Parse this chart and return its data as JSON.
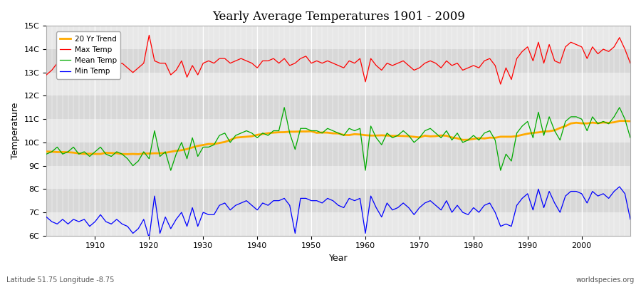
{
  "title": "Yearly Average Temperatures 1901 - 2009",
  "xlabel": "Year",
  "ylabel": "Temperature",
  "subtitle_left": "Latitude 51.75 Longitude -8.75",
  "subtitle_right": "worldspecies.org",
  "years": [
    1901,
    1902,
    1903,
    1904,
    1905,
    1906,
    1907,
    1908,
    1909,
    1910,
    1911,
    1912,
    1913,
    1914,
    1915,
    1916,
    1917,
    1918,
    1919,
    1920,
    1921,
    1922,
    1923,
    1924,
    1925,
    1926,
    1927,
    1928,
    1929,
    1930,
    1931,
    1932,
    1933,
    1934,
    1935,
    1936,
    1937,
    1938,
    1939,
    1940,
    1941,
    1942,
    1943,
    1944,
    1945,
    1946,
    1947,
    1948,
    1949,
    1950,
    1951,
    1952,
    1953,
    1954,
    1955,
    1956,
    1957,
    1958,
    1959,
    1960,
    1961,
    1962,
    1963,
    1964,
    1965,
    1966,
    1967,
    1968,
    1969,
    1970,
    1971,
    1972,
    1973,
    1974,
    1975,
    1976,
    1977,
    1978,
    1979,
    1980,
    1981,
    1982,
    1983,
    1984,
    1985,
    1986,
    1987,
    1988,
    1989,
    1990,
    1991,
    1992,
    1993,
    1994,
    1995,
    1996,
    1997,
    1998,
    1999,
    2000,
    2001,
    2002,
    2003,
    2004,
    2005,
    2006,
    2007,
    2008,
    2009
  ],
  "max_temp": [
    12.9,
    13.1,
    13.4,
    13.2,
    13.3,
    13.5,
    13.2,
    13.4,
    13.2,
    13.4,
    13.6,
    13.3,
    13.1,
    13.3,
    13.4,
    13.2,
    13.0,
    13.2,
    13.4,
    14.6,
    13.5,
    13.4,
    13.4,
    12.9,
    13.1,
    13.5,
    12.8,
    13.3,
    12.9,
    13.4,
    13.5,
    13.4,
    13.6,
    13.6,
    13.4,
    13.5,
    13.6,
    13.5,
    13.4,
    13.2,
    13.5,
    13.5,
    13.6,
    13.4,
    13.6,
    13.3,
    13.4,
    13.6,
    13.7,
    13.4,
    13.5,
    13.4,
    13.5,
    13.4,
    13.3,
    13.2,
    13.5,
    13.4,
    13.6,
    12.6,
    13.6,
    13.3,
    13.1,
    13.4,
    13.3,
    13.4,
    13.5,
    13.3,
    13.1,
    13.2,
    13.4,
    13.5,
    13.4,
    13.2,
    13.5,
    13.3,
    13.4,
    13.1,
    13.2,
    13.3,
    13.2,
    13.5,
    13.6,
    13.3,
    12.5,
    13.2,
    12.7,
    13.6,
    13.9,
    14.1,
    13.5,
    14.3,
    13.4,
    14.2,
    13.5,
    13.4,
    14.1,
    14.3,
    14.2,
    14.1,
    13.6,
    14.1,
    13.8,
    14.0,
    13.9,
    14.1,
    14.5,
    14.0,
    13.4
  ],
  "mean_temp": [
    9.5,
    9.6,
    9.8,
    9.5,
    9.6,
    9.8,
    9.5,
    9.6,
    9.4,
    9.6,
    9.8,
    9.5,
    9.4,
    9.6,
    9.5,
    9.3,
    9.0,
    9.2,
    9.6,
    9.3,
    10.5,
    9.4,
    9.6,
    8.8,
    9.5,
    10.0,
    9.3,
    10.2,
    9.4,
    9.8,
    9.8,
    9.9,
    10.3,
    10.4,
    10.0,
    10.3,
    10.4,
    10.5,
    10.4,
    10.2,
    10.4,
    10.3,
    10.5,
    10.5,
    11.5,
    10.4,
    9.7,
    10.6,
    10.6,
    10.5,
    10.5,
    10.4,
    10.6,
    10.5,
    10.4,
    10.3,
    10.6,
    10.5,
    10.6,
    8.8,
    10.7,
    10.2,
    9.9,
    10.4,
    10.2,
    10.3,
    10.5,
    10.3,
    10.0,
    10.2,
    10.5,
    10.6,
    10.4,
    10.2,
    10.5,
    10.1,
    10.4,
    10.0,
    10.1,
    10.3,
    10.1,
    10.4,
    10.5,
    10.1,
    8.8,
    9.5,
    9.2,
    10.4,
    10.7,
    10.9,
    10.2,
    11.3,
    10.3,
    11.1,
    10.5,
    10.1,
    10.9,
    11.1,
    11.1,
    11.0,
    10.5,
    11.1,
    10.8,
    10.9,
    10.8,
    11.1,
    11.5,
    11.0,
    10.2
  ],
  "min_temp": [
    6.8,
    6.6,
    6.5,
    6.7,
    6.5,
    6.7,
    6.6,
    6.7,
    6.4,
    6.6,
    6.9,
    6.6,
    6.5,
    6.7,
    6.5,
    6.4,
    6.1,
    6.3,
    6.7,
    5.9,
    7.7,
    6.1,
    6.8,
    6.3,
    6.7,
    7.0,
    6.4,
    7.2,
    6.4,
    7.0,
    6.9,
    6.9,
    7.3,
    7.4,
    7.1,
    7.3,
    7.4,
    7.5,
    7.3,
    7.1,
    7.4,
    7.3,
    7.5,
    7.5,
    7.6,
    7.3,
    6.1,
    7.6,
    7.6,
    7.5,
    7.5,
    7.4,
    7.6,
    7.5,
    7.3,
    7.2,
    7.6,
    7.5,
    7.6,
    6.1,
    7.7,
    7.2,
    6.8,
    7.4,
    7.1,
    7.2,
    7.4,
    7.2,
    6.9,
    7.2,
    7.4,
    7.5,
    7.3,
    7.1,
    7.5,
    7.0,
    7.3,
    7.0,
    6.9,
    7.2,
    7.0,
    7.3,
    7.4,
    7.0,
    6.4,
    6.5,
    6.4,
    7.3,
    7.6,
    7.8,
    7.1,
    8.0,
    7.2,
    7.9,
    7.4,
    7.0,
    7.7,
    7.9,
    7.9,
    7.8,
    7.4,
    7.9,
    7.7,
    7.8,
    7.6,
    7.9,
    8.1,
    7.8,
    6.7
  ],
  "bg_color": "#ffffff",
  "plot_bg_color": "#ffffff",
  "band_colors": [
    "#e8e8e8",
    "#d8d8d8"
  ],
  "max_color": "#ff0000",
  "mean_color": "#00aa00",
  "min_color": "#0000ff",
  "trend_color": "#ffaa00",
  "ylim": [
    6.0,
    15.0
  ],
  "yticks": [
    6,
    7,
    8,
    9,
    10,
    11,
    12,
    13,
    14,
    15
  ],
  "ytick_labels": [
    "6C",
    "7C",
    "8C",
    "9C",
    "10C",
    "11C",
    "12C",
    "13C",
    "14C",
    "15C"
  ],
  "xticks": [
    1910,
    1920,
    1930,
    1940,
    1950,
    1960,
    1970,
    1980,
    1990,
    2000
  ]
}
